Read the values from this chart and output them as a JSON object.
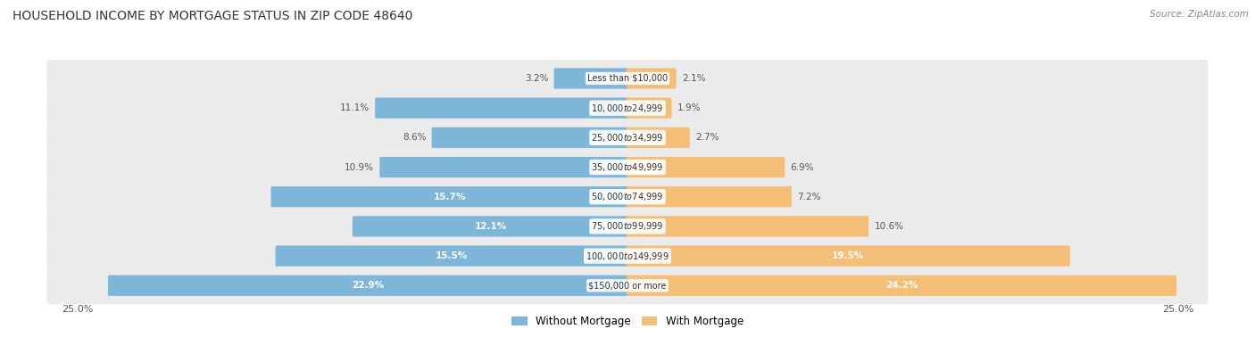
{
  "title": "HOUSEHOLD INCOME BY MORTGAGE STATUS IN ZIP CODE 48640",
  "source": "Source: ZipAtlas.com",
  "categories": [
    "Less than $10,000",
    "$10,000 to $24,999",
    "$25,000 to $34,999",
    "$35,000 to $49,999",
    "$50,000 to $74,999",
    "$75,000 to $99,999",
    "$100,000 to $149,999",
    "$150,000 or more"
  ],
  "without_mortgage": [
    3.2,
    11.1,
    8.6,
    10.9,
    15.7,
    12.1,
    15.5,
    22.9
  ],
  "with_mortgage": [
    2.1,
    1.9,
    2.7,
    6.9,
    7.2,
    10.6,
    19.5,
    24.2
  ],
  "max_val": 25.0,
  "blue_color": "#7EB6D9",
  "orange_color": "#F5BE76",
  "row_bg_color": "#EBEBEB",
  "title_fontsize": 10,
  "label_fontsize": 7.5,
  "figsize": [
    14.06,
    3.78
  ],
  "dpi": 100,
  "white_label_threshold": 12.0
}
